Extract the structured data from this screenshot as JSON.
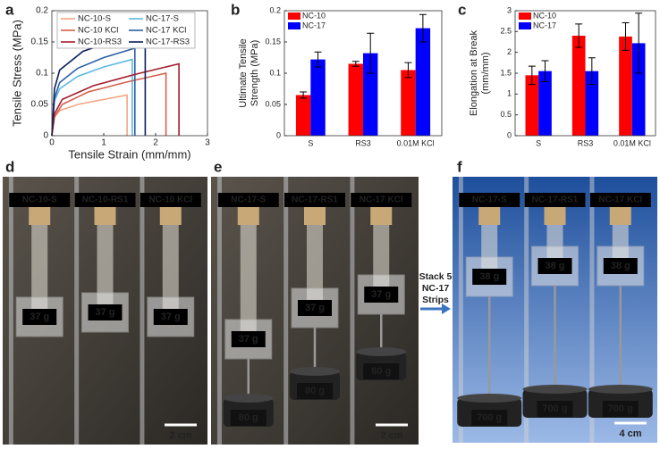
{
  "chart_data": [
    {
      "type": "line",
      "panel": "a",
      "xlabel": "Tensile Strain (mm/mm)",
      "ylabel": "Tensile Stress (MPa)",
      "xlim": [
        0,
        3
      ],
      "xticks": [
        0,
        1,
        2,
        3
      ],
      "ylim": [
        0,
        0.2
      ],
      "yticks": [
        0,
        0.05,
        0.1,
        0.15,
        0.2
      ],
      "series": [
        {
          "name": "NC-10-S",
          "color": "#f4a582",
          "x": [
            0,
            0.05,
            0.15,
            0.5,
            1.0,
            1.45,
            1.45
          ],
          "values": [
            0,
            0.03,
            0.04,
            0.05,
            0.058,
            0.065,
            0
          ]
        },
        {
          "name": "NC-17-S",
          "color": "#5bb8e0",
          "x": [
            0,
            0.05,
            0.15,
            0.5,
            1.0,
            1.55,
            1.55
          ],
          "values": [
            0,
            0.055,
            0.075,
            0.095,
            0.11,
            0.122,
            0
          ]
        },
        {
          "name": "NC-10 KCl",
          "color": "#d6604d",
          "x": [
            0,
            0.05,
            0.2,
            0.7,
            1.4,
            2.2,
            2.2
          ],
          "values": [
            0,
            0.03,
            0.05,
            0.07,
            0.085,
            0.1,
            0
          ]
        },
        {
          "name": "NC-17 KCl",
          "color": "#2c5fa8",
          "x": [
            0,
            0.05,
            0.15,
            0.5,
            1.0,
            1.6,
            1.6
          ],
          "values": [
            0,
            0.06,
            0.085,
            0.108,
            0.125,
            0.14,
            0
          ]
        },
        {
          "name": "NC-10-RS3",
          "color": "#a61c2b",
          "x": [
            0,
            0.05,
            0.2,
            0.8,
            1.6,
            2.45,
            2.45
          ],
          "values": [
            0,
            0.035,
            0.058,
            0.08,
            0.098,
            0.115,
            0
          ]
        },
        {
          "name": "NC-17-RS3",
          "color": "#0b1f5e",
          "x": [
            0,
            0.05,
            0.15,
            0.6,
            1.2,
            1.8,
            1.8
          ],
          "values": [
            0,
            0.075,
            0.105,
            0.135,
            0.152,
            0.165,
            0
          ]
        }
      ]
    },
    {
      "type": "bar",
      "panel": "b",
      "ylabel": [
        "Ultimate Tensile",
        "Strength (MPa)"
      ],
      "categories": [
        "S",
        "RS3",
        "0.01M KCl"
      ],
      "ylim": [
        0,
        0.2
      ],
      "yticks": [
        0,
        0.05,
        0.1,
        0.15,
        0.2
      ],
      "series": [
        {
          "name": "NC-10",
          "color": "#ff0000",
          "values": [
            0.065,
            0.115,
            0.105
          ],
          "errors": [
            0.005,
            0.004,
            0.012
          ]
        },
        {
          "name": "NC-17",
          "color": "#0000ff",
          "values": [
            0.122,
            0.132,
            0.172
          ],
          "errors": [
            0.012,
            0.032,
            0.022
          ]
        }
      ]
    },
    {
      "type": "bar",
      "panel": "c",
      "ylabel": [
        "Elongation at Break",
        "(mm/mm)"
      ],
      "categories": [
        "S",
        "RS3",
        "0.01M KCl"
      ],
      "ylim": [
        0,
        3
      ],
      "yticks": [
        0,
        0.5,
        1,
        1.5,
        2,
        2.5,
        3
      ],
      "series": [
        {
          "name": "NC-10",
          "color": "#ff0000",
          "values": [
            1.45,
            2.4,
            2.38
          ],
          "errors": [
            0.22,
            0.28,
            0.33
          ]
        },
        {
          "name": "NC-17",
          "color": "#0000ff",
          "values": [
            1.55,
            1.55,
            2.22
          ],
          "errors": [
            0.25,
            0.32,
            0.72
          ]
        }
      ]
    }
  ],
  "photos": [
    {
      "panel": "d",
      "strips": [
        "NC-10-S",
        "NC-10-RS1",
        "NC-10 KCl"
      ],
      "clamps": [
        "37 g",
        "37 g",
        "37 g"
      ],
      "scale": "2 cm"
    },
    {
      "panel": "e",
      "strips": [
        "NC-17-S",
        "NC-17-RS1",
        "NC-17 KCl"
      ],
      "clamps": [
        "37 g",
        "37 g",
        "37 g"
      ],
      "weights": [
        "80 g",
        "80 g",
        "80 g"
      ],
      "scale": "2 cm"
    },
    {
      "panel": "f",
      "strips": [
        "NC-17-S",
        "NC-17-RS1",
        "NC-17 KCl"
      ],
      "clamps": [
        "38 g",
        "38 g",
        "38 g"
      ],
      "weights": [
        "700 g",
        "700 g",
        "700 g"
      ],
      "scale": "4 cm"
    }
  ],
  "note": [
    "Stack 5",
    "NC-17",
    "Strips"
  ]
}
